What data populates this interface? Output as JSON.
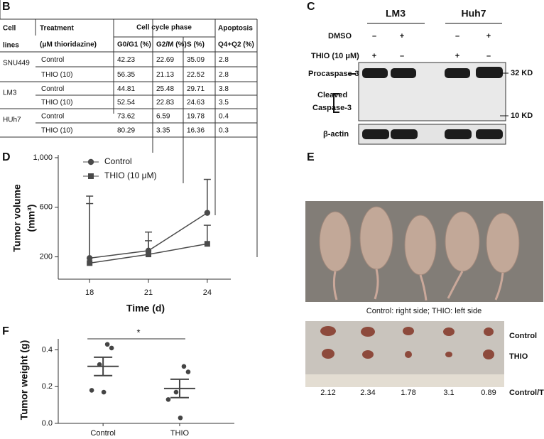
{
  "table": {
    "letter": "B",
    "headers": {
      "cell_lines": [
        "Cell",
        "lines"
      ],
      "treatment": [
        "Treatment",
        "(μM thioridazine)"
      ],
      "cell_cycle": "Cell cycle phase",
      "phases": [
        "G0/G1 (%)",
        "G2/M (%)",
        "S (%)"
      ],
      "apoptosis": [
        "Apoptosis",
        "Q4+Q2 (%)"
      ]
    },
    "groups": [
      {
        "cell_line": "SNU449",
        "rows": [
          [
            "Control",
            "42.23",
            "22.69",
            "35.09",
            "2.8"
          ],
          [
            "THIO (10)",
            "56.35",
            "21.13",
            "22.52",
            "2.8"
          ]
        ]
      },
      {
        "cell_line": "LM3",
        "rows": [
          [
            "Control",
            "44.81",
            "25.48",
            "29.71",
            "3.8"
          ],
          [
            "THIO (10)",
            "52.54",
            "22.83",
            "24.63",
            "3.5"
          ]
        ]
      },
      {
        "cell_line": "HUh7",
        "rows": [
          [
            "Control",
            "73.62",
            "6.59",
            "19.78",
            "0.4"
          ],
          [
            "THIO (10)",
            "80.29",
            "3.35",
            "16.36",
            "0.3"
          ]
        ]
      }
    ]
  },
  "blot": {
    "letter": "C",
    "cell_lines": [
      "LM3",
      "Huh7"
    ],
    "rows": [
      {
        "label": "DMSO",
        "signs": [
          "–",
          "+",
          "–",
          "+"
        ]
      },
      {
        "label": "THIO (10 μM)",
        "signs": [
          "+",
          "–",
          "+",
          "–"
        ]
      }
    ],
    "procaspase": "Procaspase-3",
    "cleaved": [
      "Cleaved",
      "Caspase-3"
    ],
    "actin": "β-actin",
    "markers": [
      "32 KD",
      "10 KD"
    ]
  },
  "photos": {
    "letter": "E",
    "caption": "Control: right side; THIO: left side",
    "row_labels": [
      "Control",
      "THIO"
    ],
    "ratios": [
      "2.12",
      "2.34",
      "1.78",
      "3.1",
      "0.89"
    ],
    "ratio_label": "Control/THIO"
  },
  "chart_data": [
    {
      "type": "line",
      "letter": "D",
      "x": [
        18,
        21,
        24
      ],
      "xlim": [
        16.4,
        25.2
      ],
      "xticks": [
        18,
        21,
        24
      ],
      "ylim": [
        20,
        1000
      ],
      "yticks": [
        200,
        600,
        {
          "value": 1000,
          "label": "1,000"
        }
      ],
      "ylabel": [
        "Tumor volume",
        "(mm³)"
      ],
      "xlabel": "Time (d)",
      "series": [
        {
          "name": "Control",
          "color": "#4a4a4a",
          "marker": "circle",
          "values": [
            190,
            250,
            555
          ],
          "errors": [
            500,
            150,
            270
          ]
        },
        {
          "name": "THIO (10 μM)",
          "color": "#4a4a4a",
          "marker": "square",
          "values": [
            150,
            220,
            305
          ],
          "errors": [
            480,
            110,
            150
          ]
        }
      ]
    },
    {
      "type": "dotplot",
      "letter": "F",
      "categories": [
        "Control",
        "THIO"
      ],
      "points": [
        [
          0.43,
          0.41,
          0.32,
          0.18,
          0.17
        ],
        [
          0.31,
          0.28,
          0.17,
          0.13,
          0.03
        ]
      ],
      "means": [
        0.31,
        0.19
      ],
      "errors": [
        0.05,
        0.05
      ],
      "color": "#444444",
      "ylim": [
        0,
        0.46
      ],
      "yticks": [
        {
          "value": 0,
          "label": "0.0"
        },
        0.2,
        0.4
      ],
      "ylabel": "Tumor weight (g)",
      "annotation": "*"
    }
  ]
}
